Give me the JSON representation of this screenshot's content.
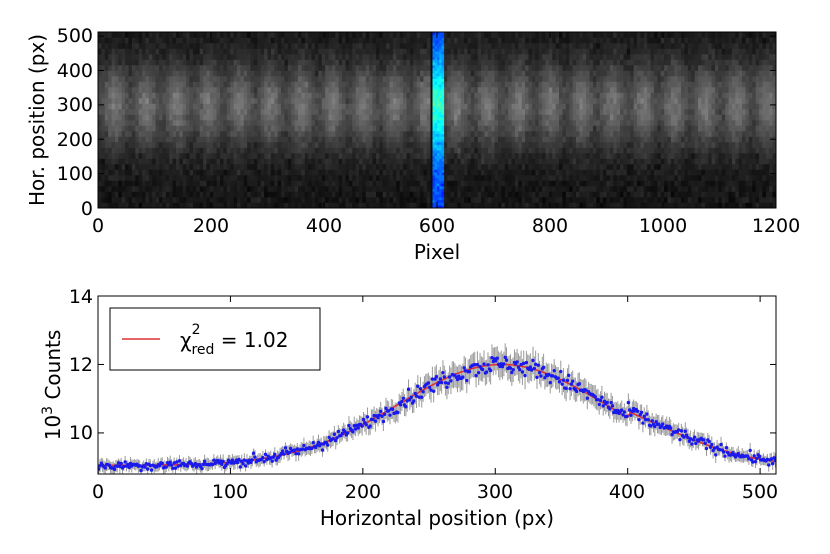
{
  "chart_data": [
    {
      "type": "heatmap",
      "xlabel": "Pixel",
      "ylabel": "Hor. position (px)",
      "xlim": [
        0,
        1200
      ],
      "ylim": [
        0,
        512
      ],
      "x_ticks": [
        0,
        200,
        400,
        600,
        800,
        1000,
        1200
      ],
      "y_ticks": [
        0,
        100,
        200,
        300,
        400,
        500
      ],
      "highlight_band": {
        "x_start": 592,
        "x_end": 612,
        "colormap": "jet"
      },
      "background_colormap": "gray",
      "profile_center": 300,
      "profile_width": 90
    },
    {
      "type": "scatter",
      "xlabel": "Horizontal position (px)",
      "ylabel_base": "10",
      "ylabel_exp": "3",
      "ylabel_rest": " Counts",
      "xlim": [
        0,
        512
      ],
      "ylim": [
        8.8,
        14
      ],
      "x_ticks": [
        0,
        100,
        200,
        300,
        400,
        500
      ],
      "y_ticks": [
        10,
        12,
        14
      ],
      "legend": {
        "chi": "χ",
        "sup": "2",
        "sub": "red",
        "value": " = 1.02",
        "location": "upper-left"
      },
      "fit": {
        "baseline": 9.05,
        "amplitude": 2.95,
        "center": 305,
        "sigma": 78,
        "color": "#dd3333"
      },
      "points_color": "#1a1aee",
      "errorbar_color": "#999999",
      "n_points": 512,
      "noise": 0.22
    }
  ],
  "tick_labels": {
    "top_x": [
      "0",
      "200",
      "400",
      "600",
      "800",
      "1000",
      "1200"
    ],
    "top_y": [
      "0",
      "100",
      "200",
      "300",
      "400",
      "500"
    ],
    "bottom_x": [
      "0",
      "100",
      "200",
      "300",
      "400",
      "500"
    ],
    "bottom_y": [
      "10",
      "12",
      "14"
    ]
  }
}
